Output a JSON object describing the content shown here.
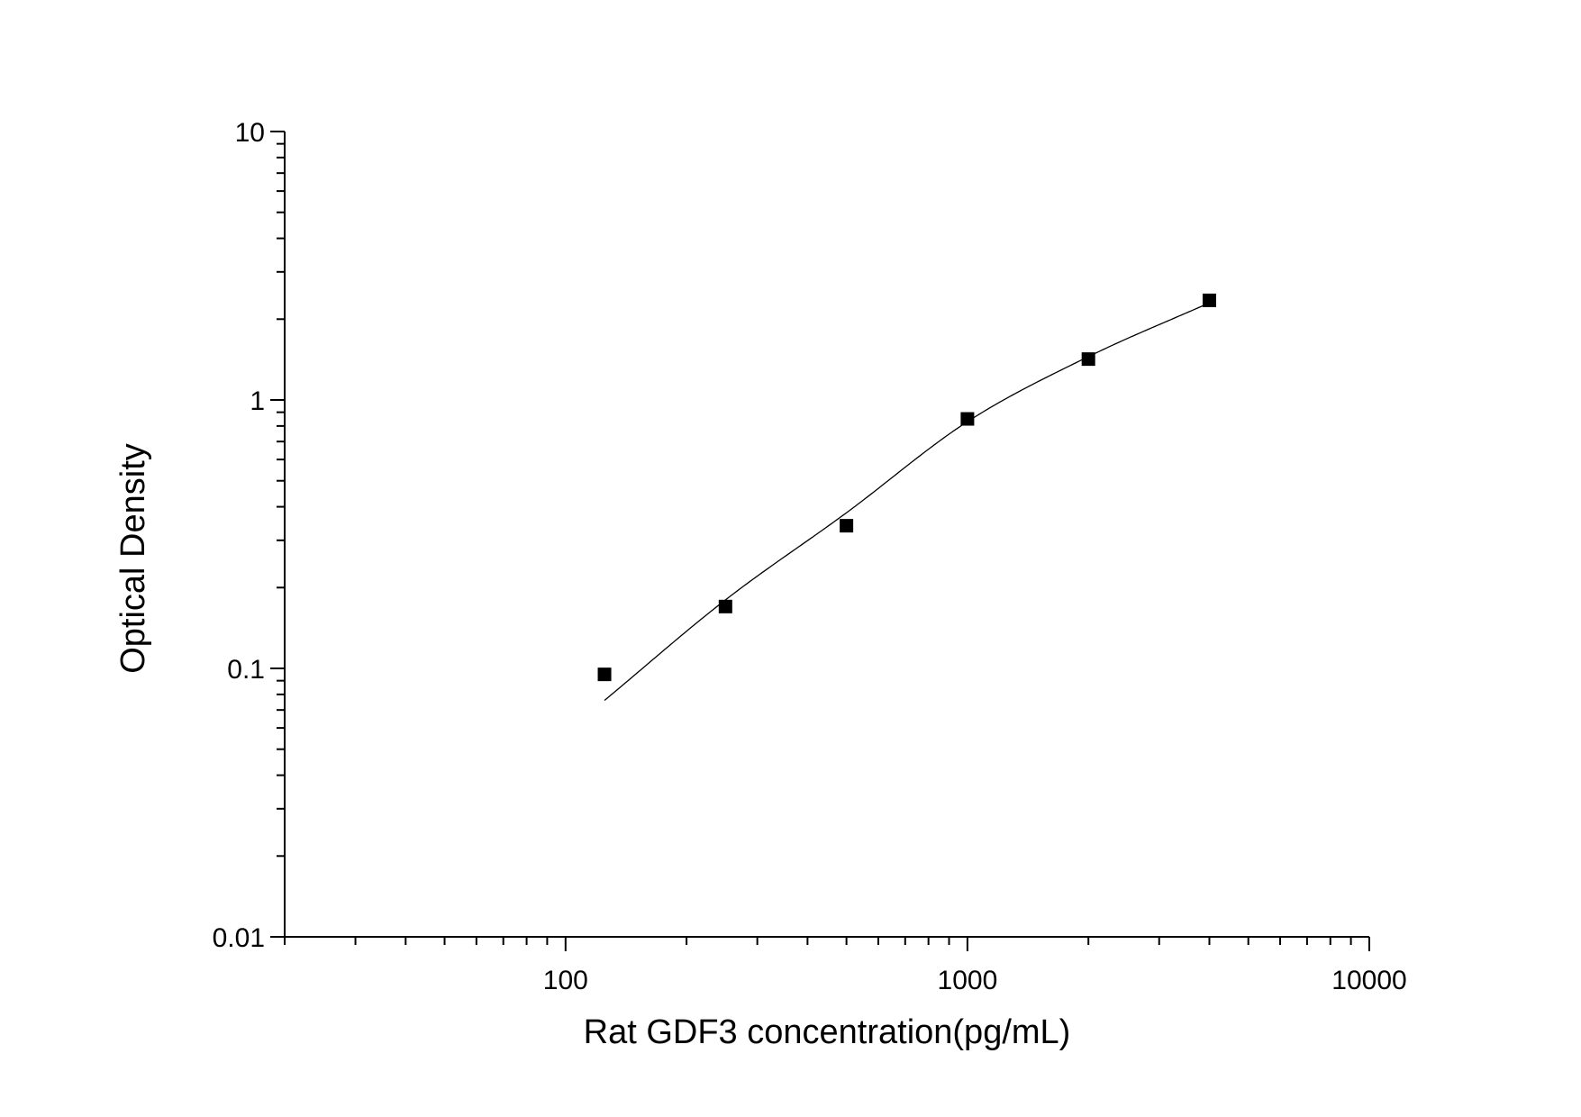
{
  "chart_data": {
    "type": "scatter",
    "xlabel": "Rat GDF3 concentration(pg/mL)",
    "ylabel": "Optical Density",
    "xscale": "log",
    "yscale": "log",
    "xlim": [
      20,
      10000
    ],
    "ylim": [
      0.01,
      10
    ],
    "x_ticks": [
      {
        "value": 100,
        "label": "100"
      },
      {
        "value": 1000,
        "label": "1000"
      },
      {
        "value": 10000,
        "label": "10000"
      }
    ],
    "y_ticks": [
      {
        "value": 0.01,
        "label": "0.01"
      },
      {
        "value": 0.1,
        "label": "0.1"
      },
      {
        "value": 1,
        "label": "1"
      },
      {
        "value": 10,
        "label": "10"
      }
    ],
    "grid": false,
    "series": [
      {
        "marker": "square",
        "x": [
          125,
          250,
          500,
          1000,
          2000,
          4000
        ],
        "y": [
          0.095,
          0.17,
          0.34,
          0.85,
          1.42,
          2.35
        ]
      }
    ],
    "fit_curve": {
      "x": [
        125,
        250,
        500,
        1000,
        2000,
        4000
      ],
      "y": [
        0.076,
        0.18,
        0.38,
        0.83,
        1.45,
        2.3
      ]
    },
    "colors": {
      "marker": "#000000",
      "line": "#000000",
      "axis": "#000000"
    }
  }
}
